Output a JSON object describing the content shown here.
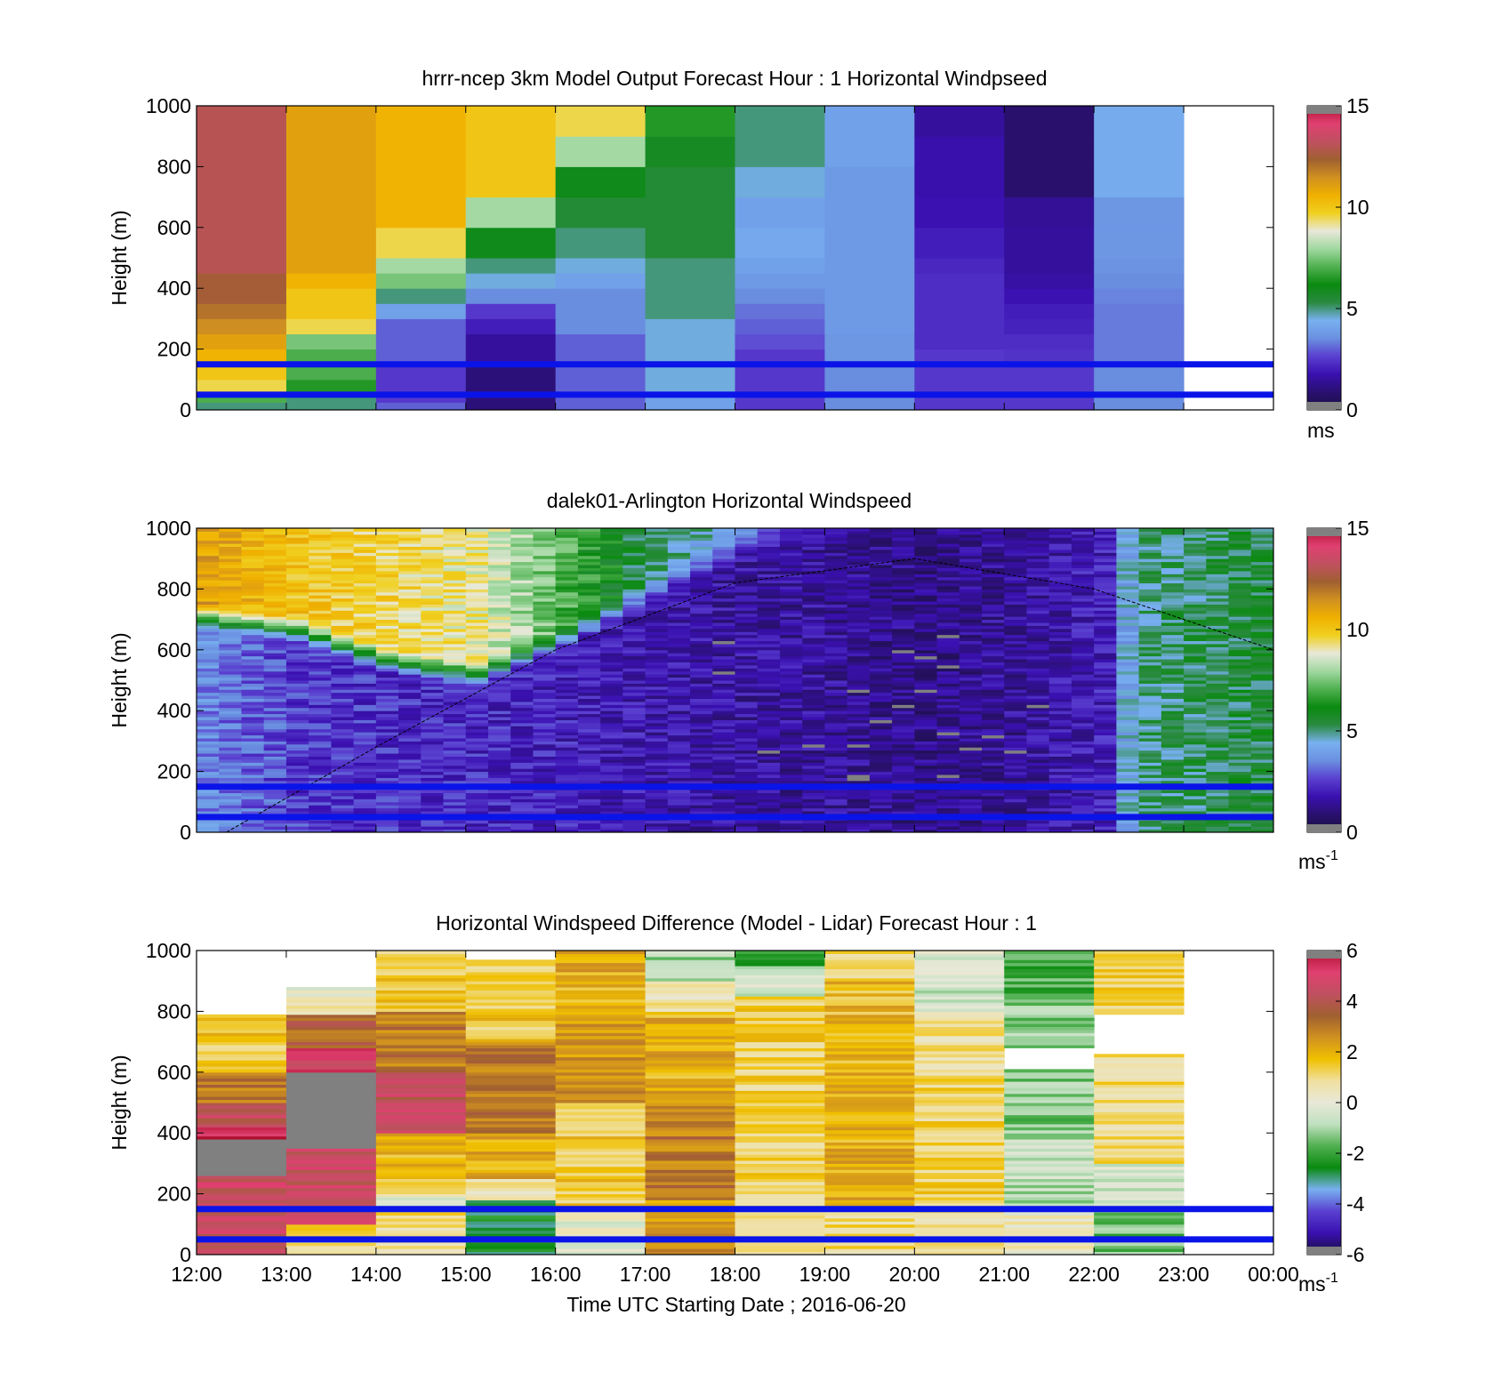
{
  "units": {
    "ms": "ms",
    "ms_inv_base": "ms",
    "ms_inv_exp": "-1"
  },
  "colorbar": {
    "speed_colors": [
      "#1a1040",
      "#2a1070",
      "#3a10b0",
      "#5a40d0",
      "#6a90e0",
      "#78b0f0",
      "#2a8a40",
      "#0a8a10",
      "#50b050",
      "#a0d8a0",
      "#e8e8d8",
      "#f0d020",
      "#f0b000",
      "#d09020",
      "#a06030",
      "#c05060",
      "#e04070",
      "#b01030"
    ],
    "diff_colors": [
      "#1a1040",
      "#3a10b0",
      "#5a40d0",
      "#78b0f0",
      "#0a8a10",
      "#50b050",
      "#c0e0c0",
      "#e8e8d8",
      "#f0e0a0",
      "#f0c000",
      "#d09020",
      "#a06030",
      "#c05060",
      "#e04070",
      "#b01030"
    ]
  },
  "chart_data": [
    {
      "type": "heatmap",
      "title": "hrrr-ncep 3km Model Output   Forecast Hour : 1 Horizontal Windpseed",
      "ylabel": "Height (m)",
      "xlabel": "",
      "ylim": [
        0,
        1000
      ],
      "yticks": [
        "0",
        "200",
        "400",
        "600",
        "800",
        "1000"
      ],
      "xlim": [
        "12:00",
        "00:00"
      ],
      "colorbar": {
        "min": 0,
        "max": 15,
        "ticks": [
          "0",
          "5",
          "10",
          "15"
        ],
        "unit": "ms"
      },
      "heights": [
        25,
        50,
        100,
        150,
        200,
        250,
        300,
        350,
        400,
        450,
        500,
        600,
        700,
        800,
        900,
        1000
      ],
      "times": [
        "12:00",
        "13:00",
        "14:00",
        "15:00",
        "16:00",
        "17:00",
        "18:00",
        "19:00",
        "20:00",
        "21:00",
        "22:00"
      ],
      "values": [
        [
          5,
          7,
          9.5,
          10,
          10.5,
          11,
          11.5,
          12,
          12.5,
          12.5,
          13,
          13,
          13,
          13,
          13,
          13
        ],
        [
          5,
          5,
          6.5,
          7,
          7,
          7.5,
          9.5,
          10,
          10,
          10.5,
          11,
          11,
          11,
          11,
          11,
          11
        ],
        [
          3,
          2.5,
          2.5,
          2.5,
          3,
          3,
          3,
          4,
          5,
          7.5,
          8,
          9.5,
          10.5,
          10.5,
          10.5,
          10.5
        ],
        [
          1,
          1,
          1,
          1,
          1.5,
          1.5,
          2,
          2.5,
          3.5,
          4.5,
          5,
          6,
          8,
          10,
          10,
          10
        ],
        [
          3,
          3,
          3,
          3,
          3,
          3,
          3.5,
          3.5,
          3.5,
          4,
          4.5,
          5,
          5.5,
          6,
          8,
          9.5
        ],
        [
          4,
          4,
          4.5,
          4.5,
          4.5,
          4.5,
          4.5,
          5,
          5,
          5,
          5,
          5.5,
          5.5,
          5.5,
          5.8,
          6.5
        ],
        [
          2.5,
          2.5,
          2.5,
          2.5,
          2.5,
          2.8,
          3,
          3.2,
          3.5,
          3.8,
          4,
          4.2,
          4,
          4.5,
          5,
          5
        ],
        [
          3.5,
          3.5,
          3.5,
          3.5,
          3.7,
          3.7,
          3.8,
          3.8,
          3.8,
          3.8,
          3.8,
          3.8,
          3.8,
          3.8,
          4,
          4
        ],
        [
          2.5,
          2.5,
          2.5,
          2.5,
          2.5,
          2.3,
          2.3,
          2.3,
          2.3,
          2.3,
          2.2,
          2,
          1.8,
          1.7,
          1.7,
          1.5
        ],
        [
          2.5,
          2.5,
          2.5,
          2.5,
          2.4,
          2.3,
          2.1,
          2,
          1.8,
          1.6,
          1.5,
          1.5,
          1.4,
          0.8,
          0.8,
          0.8
        ],
        [
          3.5,
          3.5,
          3.5,
          3.5,
          3.3,
          3.3,
          3.3,
          3.3,
          3.4,
          3.5,
          3.6,
          3.7,
          3.7,
          4.3,
          4.3,
          4.3
        ]
      ],
      "reference_lines_m": [
        150,
        50
      ]
    },
    {
      "type": "heatmap",
      "title": "dalek01-Arlington  Horizontal Windspeed",
      "ylabel": "Height (m)",
      "xlabel": "",
      "ylim": [
        0,
        1000
      ],
      "yticks": [
        "0",
        "200",
        "400",
        "600",
        "800",
        "1000"
      ],
      "xlim": [
        "12:00",
        "00:00"
      ],
      "colorbar": {
        "min": 0,
        "max": 15,
        "ticks": [
          "0",
          "5",
          "10",
          "15"
        ],
        "unit": "ms-1"
      },
      "time_start": "12:00",
      "time_end": "23:50",
      "low_jet_profile": [
        {
          "time": "12:00",
          "height": 700,
          "below": 3.5,
          "above": 11
        },
        {
          "time": "13:00",
          "height": 660,
          "below": 2.5,
          "above": 10
        },
        {
          "time": "14:00",
          "height": 560,
          "below": 2.3,
          "above": 9.5
        },
        {
          "time": "15:00",
          "height": 510,
          "below": 2.2,
          "above": 9
        },
        {
          "time": "16:00",
          "height": 640,
          "below": 2,
          "above": 7
        },
        {
          "time": "17:00",
          "height": 800,
          "below": 1.8,
          "above": 5
        },
        {
          "time": "18:00",
          "height": 950,
          "below": 1.6,
          "above": 4
        },
        {
          "time": "19:00",
          "height": 1000,
          "below": 1.5,
          "above": 2
        },
        {
          "time": "20:00",
          "height": 1000,
          "below": 1.2,
          "above": 1.5
        },
        {
          "time": "21:00",
          "height": 1000,
          "below": 1.5,
          "above": 1.5
        },
        {
          "time": "22:00",
          "height": 1000,
          "below": 2,
          "above": 2
        },
        {
          "time": "22:20",
          "height": 0,
          "below": 5,
          "above": 5
        },
        {
          "time": "23:50",
          "height": 0,
          "below": 5.5,
          "above": 5.5
        }
      ],
      "boundary_layer_curve": [
        {
          "time": "12:20",
          "height": 0
        },
        {
          "time": "14:00",
          "height": 280
        },
        {
          "time": "16:00",
          "height": 600
        },
        {
          "time": "18:00",
          "height": 820
        },
        {
          "time": "20:00",
          "height": 900
        },
        {
          "time": "22:00",
          "height": 800
        },
        {
          "time": "00:00",
          "height": 600
        }
      ],
      "reference_lines_m": [
        150,
        50
      ]
    },
    {
      "type": "heatmap",
      "title": "Horizontal Windspeed Difference (Model - Lidar) Forecast Hour : 1",
      "ylabel": "Height (m)",
      "xlabel": "Time UTC  Starting Date ; 2016-06-20",
      "ylim": [
        0,
        1000
      ],
      "yticks": [
        "0",
        "200",
        "400",
        "600",
        "800",
        "1000"
      ],
      "xticks": [
        "12:00",
        "13:00",
        "14:00",
        "15:00",
        "16:00",
        "17:00",
        "18:00",
        "19:00",
        "20:00",
        "21:00",
        "22:00",
        "23:00",
        "00:00"
      ],
      "colorbar": {
        "min": -6,
        "max": 6,
        "ticks": [
          "-6",
          "-4",
          "-2",
          "0",
          "2",
          "4",
          "6"
        ],
        "unit": "ms-1"
      },
      "times": [
        "12:00",
        "13:00",
        "14:00",
        "15:00",
        "16:00",
        "17:00",
        "18:00",
        "19:00",
        "20:00",
        "21:00",
        "22:00"
      ],
      "columns": [
        {
          "top": 790,
          "segments": [
            [
              0,
              260,
              4.5
            ],
            [
              260,
              380,
              99
            ],
            [
              380,
              420,
              5.5
            ],
            [
              420,
              500,
              4.2
            ],
            [
              500,
              600,
              3
            ],
            [
              600,
              790,
              1.5
            ]
          ]
        },
        {
          "top": 1000,
          "gaps": [
            [
              880,
              1000
            ]
          ],
          "segments": [
            [
              0,
              100,
              1
            ],
            [
              100,
              350,
              4.5
            ],
            [
              350,
              600,
              99
            ],
            [
              600,
              680,
              5
            ],
            [
              680,
              790,
              3.5
            ],
            [
              790,
              850,
              1
            ],
            [
              850,
              880,
              0
            ]
          ]
        },
        {
          "top": 1000,
          "segments": [
            [
              0,
              150,
              1
            ],
            [
              150,
              200,
              0
            ],
            [
              200,
              400,
              1.8
            ],
            [
              400,
              600,
              4.3
            ],
            [
              600,
              800,
              3
            ],
            [
              800,
              1000,
              1.5
            ]
          ]
        },
        {
          "top": 970,
          "segments": [
            [
              0,
              180,
              -2.5
            ],
            [
              180,
              250,
              0.5
            ],
            [
              250,
              400,
              2
            ],
            [
              400,
              700,
              3
            ],
            [
              700,
              970,
              1.5
            ]
          ]
        },
        {
          "top": 1000,
          "segments": [
            [
              0,
              150,
              0
            ],
            [
              150,
              500,
              1.5
            ],
            [
              500,
              800,
              2.5
            ],
            [
              800,
              1000,
              2
            ]
          ]
        },
        {
          "top": 1000,
          "segments": [
            [
              0,
              200,
              2.5
            ],
            [
              200,
              500,
              3
            ],
            [
              500,
              800,
              2
            ],
            [
              800,
              900,
              0.5
            ],
            [
              900,
              1000,
              -1
            ]
          ]
        },
        {
          "top": 1000,
          "segments": [
            [
              0,
              700,
              1.2
            ],
            [
              700,
              850,
              1.5
            ],
            [
              850,
              950,
              -0.5
            ],
            [
              950,
              1000,
              -2
            ]
          ]
        },
        {
          "top": 1000,
          "segments": [
            [
              0,
              150,
              1
            ],
            [
              150,
              600,
              2
            ],
            [
              600,
              900,
              1.8
            ],
            [
              900,
              1000,
              1.2
            ]
          ]
        },
        {
          "top": 1000,
          "segments": [
            [
              0,
              150,
              1
            ],
            [
              150,
              600,
              1.2
            ],
            [
              600,
              800,
              0.8
            ],
            [
              800,
              1000,
              -0.5
            ]
          ]
        },
        {
          "top": 1000,
          "gaps": [
            [
              610,
              680
            ]
          ],
          "segments": [
            [
              0,
              150,
              0.3
            ],
            [
              150,
              400,
              -0.8
            ],
            [
              400,
              610,
              -1.3
            ],
            [
              680,
              850,
              -1.2
            ],
            [
              850,
              1000,
              -1.8
            ]
          ]
        },
        {
          "top": 1000,
          "gaps": [
            [
              660,
              790
            ]
          ],
          "segments": [
            [
              0,
              150,
              -1.5
            ],
            [
              150,
              300,
              -0.5
            ],
            [
              300,
              660,
              1
            ],
            [
              790,
              1000,
              1.2
            ]
          ]
        }
      ],
      "reference_lines_m": [
        150,
        50
      ]
    }
  ]
}
